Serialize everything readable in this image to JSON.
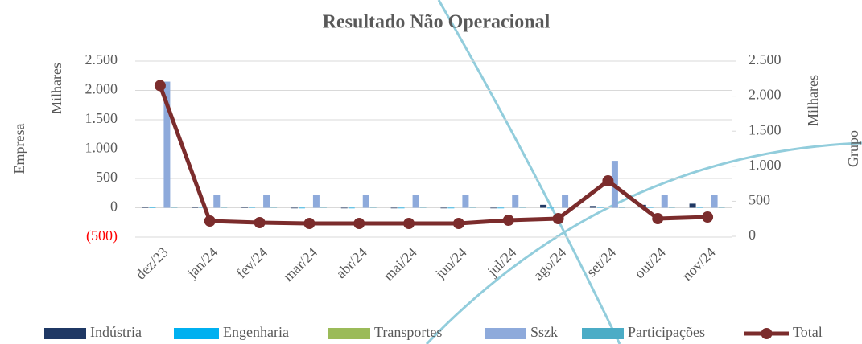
{
  "chart_data": {
    "type": "bar_line",
    "title": "Resultado Não Operacional",
    "y_label": "Empresa",
    "y_unit": "Milhares",
    "y2_label": "Grupo",
    "y2_unit": "Milhares",
    "categories": [
      "dez/23",
      "jan/24",
      "fev/24",
      "mar/24",
      "abr/24",
      "mai/24",
      "jun/24",
      "jul/24",
      "ago/24",
      "set/24",
      "out/24",
      "nov/24"
    ],
    "ylim": [
      -500,
      2500
    ],
    "yticks": [
      {
        "value": -500,
        "label": "(500)"
      },
      0,
      500,
      {
        "value": 1000,
        "label": "1.000"
      },
      {
        "value": 1500,
        "label": "1.500"
      },
      {
        "value": 2000,
        "label": "2.000"
      },
      {
        "value": 2500,
        "label": "2.500"
      }
    ],
    "y2lim": [
      0,
      2500
    ],
    "y2ticks": [
      0,
      500,
      {
        "value": 1000,
        "label": "1.000"
      },
      {
        "value": 1500,
        "label": "1.500"
      },
      {
        "value": 2000,
        "label": "2.000"
      },
      {
        "value": 2500,
        "label": "2.500"
      }
    ],
    "grid": true,
    "legend": "bottom",
    "series": [
      {
        "name": "Indústria",
        "color": "#1f3864",
        "type": "bar",
        "values": [
          10,
          10,
          20,
          -10,
          -10,
          -10,
          -10,
          -10,
          50,
          30,
          50,
          70
        ]
      },
      {
        "name": "Engenharia",
        "color": "#00b0f0",
        "type": "bar",
        "values": [
          10,
          5,
          5,
          -10,
          -10,
          -10,
          -10,
          -10,
          -10,
          -5,
          5,
          5
        ]
      },
      {
        "name": "Transportes",
        "color": "#9bbb59",
        "type": "bar",
        "values": [
          0,
          0,
          0,
          0,
          0,
          0,
          0,
          0,
          0,
          0,
          0,
          0
        ]
      },
      {
        "name": "Sszk",
        "color": "#8eaadb",
        "type": "bar",
        "values": [
          2150,
          220,
          220,
          220,
          220,
          220,
          220,
          220,
          220,
          800,
          220,
          220
        ]
      },
      {
        "name": "Participações",
        "color": "#4bacc6",
        "type": "bar",
        "values": [
          5,
          5,
          5,
          -5,
          -5,
          -5,
          -5,
          -5,
          -5,
          5,
          5,
          5
        ]
      },
      {
        "name": "Total",
        "color": "#7b2c2c",
        "type": "line",
        "axis": "y2",
        "values": [
          2150,
          218,
          195,
          183,
          183,
          183,
          183,
          229,
          252,
          791,
          252,
          275
        ]
      }
    ]
  }
}
